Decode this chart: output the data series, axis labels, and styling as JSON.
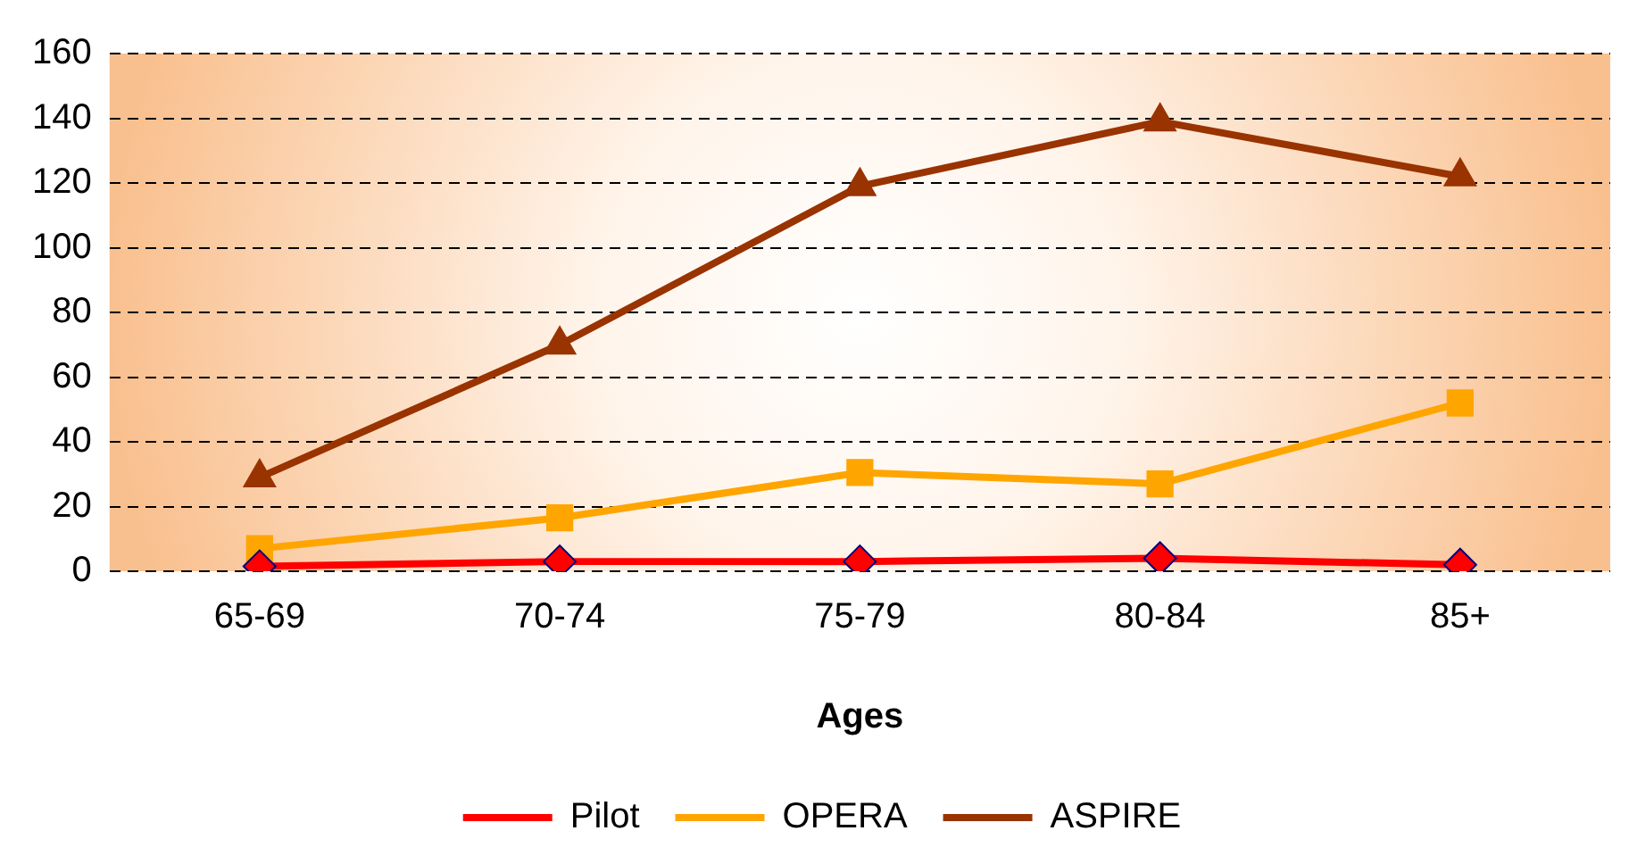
{
  "chart_data": {
    "type": "line",
    "xlabel": "Ages",
    "categories": [
      "65-69",
      "70-74",
      "75-79",
      "80-84",
      "85+"
    ],
    "series": [
      {
        "name": "Pilot",
        "color": "#ff0000",
        "marker": "diamond",
        "values": [
          1.5,
          3,
          3,
          4,
          2
        ]
      },
      {
        "name": "OPERA",
        "color": "#ffa500",
        "marker": "square",
        "values": [
          7,
          16.5,
          30.5,
          27,
          52
        ]
      },
      {
        "name": "ASPIRE",
        "color": "#993300",
        "marker": "triangle",
        "values": [
          29,
          70,
          119,
          139,
          122
        ]
      }
    ],
    "ylim": [
      0,
      160
    ],
    "yticks": [
      0,
      20,
      40,
      60,
      80,
      100,
      120,
      140,
      160
    ],
    "grid": "y",
    "legend": "bottom"
  }
}
